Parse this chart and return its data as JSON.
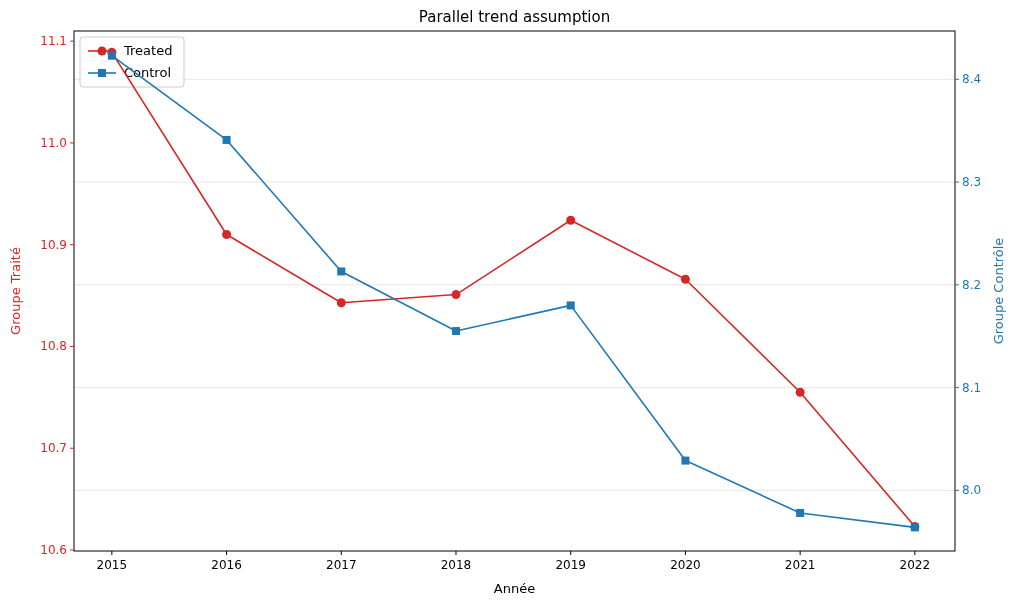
{
  "chart_data": {
    "type": "line",
    "title": "Parallel trend assumption",
    "xlabel": "Année",
    "ylabel": "Groupe Traité",
    "y2label": "Groupe Contrôle",
    "x": [
      2015,
      2016,
      2017,
      2018,
      2019,
      2020,
      2021,
      2022
    ],
    "xlim": [
      2014.67,
      2022.35
    ],
    "xticks": [
      2015,
      2016,
      2017,
      2018,
      2019,
      2020,
      2021,
      2022
    ],
    "ylim": [
      10.599,
      11.11
    ],
    "yticks": [
      {
        "value": 10.6,
        "label": "10.6"
      },
      {
        "value": 10.7,
        "label": "10.7"
      },
      {
        "value": 10.8,
        "label": "10.8"
      },
      {
        "value": 10.9,
        "label": "10.9"
      },
      {
        "value": 11.0,
        "label": "11.0"
      },
      {
        "value": 11.1,
        "label": "11.1"
      }
    ],
    "y2lim": [
      7.941,
      8.447
    ],
    "y2ticks": [
      {
        "value": 8.0,
        "label": "8.0"
      },
      {
        "value": 8.1,
        "label": "8.1"
      },
      {
        "value": 8.2,
        "label": "8.2"
      },
      {
        "value": 8.3,
        "label": "8.3"
      },
      {
        "value": 8.4,
        "label": "8.4"
      }
    ],
    "grid": "y2",
    "legend": "top left",
    "series": [
      {
        "name": "Treated",
        "color": "#d62728",
        "marker": "circle",
        "values": [
          11.089,
          10.91,
          10.843,
          10.851,
          10.924,
          10.866,
          10.755,
          10.623
        ]
      },
      {
        "name": "Control",
        "color": "#1f77b4",
        "marker": "square",
        "axis": "y2",
        "values": [
          8.423,
          8.341,
          8.213,
          8.155,
          8.18,
          8.029,
          7.978,
          7.964
        ]
      }
    ]
  }
}
